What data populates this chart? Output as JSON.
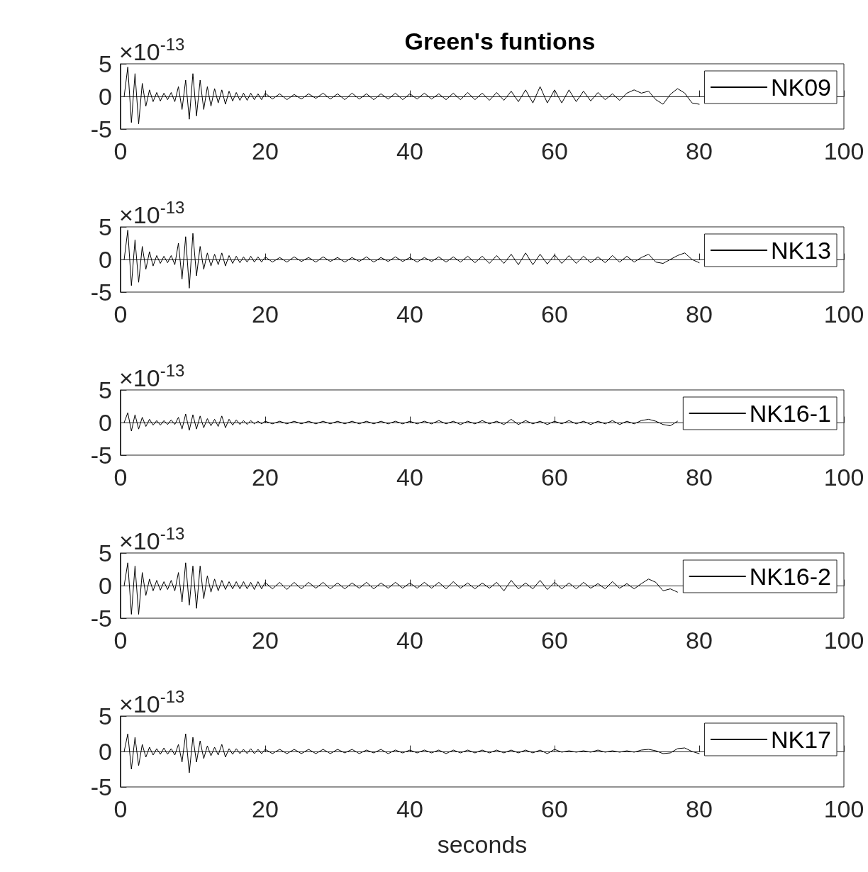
{
  "chart_data": [
    {
      "type": "line",
      "title": "Green's funtions",
      "annotations": [
        "×10$^{-13}$"
      ],
      "xlim": [
        0,
        100
      ],
      "xticks": [
        0,
        20,
        40,
        60,
        80,
        100
      ],
      "ylim": [
        -5,
        5
      ],
      "yticks": [
        -5,
        0,
        5
      ],
      "legend": "top right",
      "x": [
        0.5,
        1,
        1.5,
        2,
        2.5,
        3,
        3.5,
        4,
        4.5,
        5,
        5.5,
        6,
        6.5,
        7,
        7.5,
        8,
        8.5,
        9,
        9.5,
        10,
        10.5,
        11,
        11.5,
        12,
        12.5,
        13,
        13.5,
        14,
        14.5,
        15,
        15.5,
        16,
        16.5,
        17,
        17.5,
        18,
        18.5,
        19,
        19.5,
        20,
        21,
        22,
        23,
        24,
        25,
        26,
        27,
        28,
        29,
        30,
        31,
        32,
        33,
        34,
        35,
        36,
        37,
        38,
        39,
        40,
        41,
        42,
        43,
        44,
        45,
        46,
        47,
        48,
        49,
        50,
        51,
        52,
        53,
        54,
        55,
        56,
        57,
        58,
        59,
        60,
        61,
        62,
        63,
        64,
        65,
        66,
        67,
        68,
        69,
        70,
        71,
        72,
        73,
        74,
        75,
        76,
        77,
        78,
        79,
        80
      ],
      "series": [
        {
          "name": "NK09",
          "color": "#000000",
          "values": [
            0,
            4.5,
            -4,
            3.5,
            -4.2,
            2,
            -1.5,
            1,
            -0.8,
            0.6,
            -0.7,
            0.5,
            -0.5,
            0.6,
            -0.8,
            1.5,
            -2,
            2.5,
            -3.5,
            3.5,
            -3,
            2.5,
            -2,
            1.5,
            -1.5,
            1.2,
            -1,
            1,
            -1.2,
            0.8,
            -0.7,
            0.6,
            -0.6,
            0.5,
            -0.6,
            0.5,
            -0.5,
            0.4,
            -0.5,
            0.5,
            -0.4,
            0.4,
            -0.5,
            0.3,
            -0.4,
            0.4,
            -0.3,
            0.5,
            -0.4,
            0.4,
            -0.5,
            0.5,
            -0.4,
            0.4,
            -0.5,
            0.4,
            -0.4,
            0.5,
            -0.5,
            0.4,
            -0.4,
            0.5,
            -0.4,
            0.4,
            -0.5,
            0.5,
            -0.5,
            0.6,
            -0.5,
            0.5,
            -0.6,
            0.6,
            -0.6,
            0.8,
            -0.8,
            1,
            -1,
            1.5,
            -1,
            1,
            -1,
            1,
            -0.8,
            0.8,
            -0.7,
            0.6,
            -0.5,
            0.4,
            -0.6,
            0.5,
            1,
            0.5,
            0.8,
            -0.5,
            -1.2,
            0.3,
            1.2,
            0.5,
            -1,
            -1.2
          ]
        }
      ]
    },
    {
      "type": "line",
      "annotations": [
        "×10$^{-13}$"
      ],
      "xlim": [
        0,
        100
      ],
      "xticks": [
        0,
        20,
        40,
        60,
        80,
        100
      ],
      "ylim": [
        -5,
        5
      ],
      "yticks": [
        -5,
        0,
        5
      ],
      "legend": "top right",
      "x": [
        0.5,
        1,
        1.5,
        2,
        2.5,
        3,
        3.5,
        4,
        4.5,
        5,
        5.5,
        6,
        6.5,
        7,
        7.5,
        8,
        8.5,
        9,
        9.5,
        10,
        10.5,
        11,
        11.5,
        12,
        12.5,
        13,
        13.5,
        14,
        14.5,
        15,
        15.5,
        16,
        16.5,
        17,
        17.5,
        18,
        18.5,
        19,
        19.5,
        20,
        21,
        22,
        23,
        24,
        25,
        26,
        27,
        28,
        29,
        30,
        31,
        32,
        33,
        34,
        35,
        36,
        37,
        38,
        39,
        40,
        41,
        42,
        43,
        44,
        45,
        46,
        47,
        48,
        49,
        50,
        51,
        52,
        53,
        54,
        55,
        56,
        57,
        58,
        59,
        60,
        61,
        62,
        63,
        64,
        65,
        66,
        67,
        68,
        69,
        70,
        71,
        72,
        73,
        74,
        75,
        76,
        77,
        78,
        79,
        80
      ],
      "series": [
        {
          "name": "NK13",
          "color": "#000000",
          "values": [
            0,
            4.5,
            -4,
            3,
            -3.5,
            2,
            -1.5,
            1.2,
            -1,
            0.6,
            -0.6,
            0.5,
            -0.5,
            0.6,
            -0.8,
            2.5,
            -3,
            3.5,
            -4.4,
            4,
            -2.5,
            2,
            -1.5,
            1,
            -1,
            0.8,
            -0.8,
            1,
            -1,
            0.6,
            -0.6,
            0.5,
            -0.5,
            0.4,
            -0.4,
            0.5,
            -0.4,
            0.4,
            -0.4,
            0.4,
            -0.4,
            0.3,
            -0.4,
            0.4,
            -0.3,
            0.3,
            -0.4,
            0.4,
            -0.3,
            0.3,
            -0.4,
            0.3,
            -0.3,
            0.4,
            -0.4,
            0.3,
            -0.3,
            0.4,
            -0.3,
            0.3,
            -0.4,
            0.3,
            -0.3,
            0.4,
            -0.4,
            0.4,
            -0.4,
            0.5,
            -0.5,
            0.5,
            -0.6,
            0.6,
            -0.6,
            0.8,
            -0.8,
            1,
            -0.8,
            0.8,
            -0.7,
            0.7,
            -0.6,
            0.6,
            -0.6,
            0.5,
            -0.5,
            0.4,
            -0.5,
            0.6,
            -0.4,
            0.5,
            -0.4,
            0.3,
            0.8,
            -0.4,
            -0.6,
            0,
            0.6,
            1,
            0,
            -0.5
          ]
        }
      ]
    },
    {
      "type": "line",
      "annotations": [
        "×10$^{-13}$"
      ],
      "xlim": [
        0,
        100
      ],
      "xticks": [
        0,
        20,
        40,
        60,
        80,
        100
      ],
      "ylim": [
        -5,
        5
      ],
      "yticks": [
        -5,
        0,
        5
      ],
      "legend": "top right",
      "x": [
        0.5,
        1,
        1.5,
        2,
        2.5,
        3,
        3.5,
        4,
        4.5,
        5,
        5.5,
        6,
        6.5,
        7,
        7.5,
        8,
        8.5,
        9,
        9.5,
        10,
        10.5,
        11,
        11.5,
        12,
        12.5,
        13,
        13.5,
        14,
        14.5,
        15,
        15.5,
        16,
        16.5,
        17,
        17.5,
        18,
        18.5,
        19,
        19.5,
        20,
        21,
        22,
        23,
        24,
        25,
        26,
        27,
        28,
        29,
        30,
        31,
        32,
        33,
        34,
        35,
        36,
        37,
        38,
        39,
        40,
        41,
        42,
        43,
        44,
        45,
        46,
        47,
        48,
        49,
        50,
        51,
        52,
        53,
        54,
        55,
        56,
        57,
        58,
        59,
        60,
        61,
        62,
        63,
        64,
        65,
        66,
        67,
        68,
        69,
        70,
        71,
        72,
        73,
        74,
        75,
        76,
        77
      ],
      "series": [
        {
          "name": "NK16-1",
          "color": "#000000",
          "values": [
            0,
            1.5,
            -1.3,
            1.2,
            -1,
            0.8,
            -0.6,
            0.5,
            -0.4,
            0.3,
            -0.4,
            0.3,
            -0.3,
            0.4,
            -0.3,
            0.8,
            -1,
            1.3,
            -1.2,
            1.2,
            -1,
            1,
            -0.8,
            0.6,
            -0.5,
            0.5,
            -0.6,
            1,
            -0.8,
            0.5,
            -0.4,
            0.4,
            -0.3,
            0.3,
            -0.3,
            0.3,
            -0.2,
            0.2,
            -0.2,
            0.2,
            -0.2,
            0.2,
            -0.2,
            0.2,
            -0.2,
            0.2,
            -0.2,
            0.2,
            -0.2,
            0.2,
            -0.2,
            0.2,
            -0.2,
            0.2,
            -0.2,
            0.2,
            -0.2,
            0.2,
            -0.2,
            0.2,
            -0.2,
            0.2,
            -0.2,
            0.3,
            -0.2,
            0.2,
            -0.3,
            0.2,
            -0.2,
            0.3,
            -0.2,
            0.2,
            -0.3,
            0.5,
            -0.3,
            0.3,
            -0.2,
            0.2,
            -0.3,
            0.2,
            -0.2,
            0.3,
            -0.2,
            0.2,
            -0.3,
            0.2,
            -0.2,
            0.3,
            -0.3,
            0.2,
            -0.2,
            0.3,
            0.5,
            0.2,
            -0.3,
            -0.5,
            0.2
          ]
        }
      ]
    },
    {
      "type": "line",
      "annotations": [
        "×10$^{-13}$"
      ],
      "xlim": [
        0,
        100
      ],
      "xticks": [
        0,
        20,
        40,
        60,
        80,
        100
      ],
      "ylim": [
        -5,
        5
      ],
      "yticks": [
        -5,
        0,
        5
      ],
      "legend": "top right",
      "x": [
        0.5,
        1,
        1.5,
        2,
        2.5,
        3,
        3.5,
        4,
        4.5,
        5,
        5.5,
        6,
        6.5,
        7,
        7.5,
        8,
        8.5,
        9,
        9.5,
        10,
        10.5,
        11,
        11.5,
        12,
        12.5,
        13,
        13.5,
        14,
        14.5,
        15,
        15.5,
        16,
        16.5,
        17,
        17.5,
        18,
        18.5,
        19,
        19.5,
        20,
        21,
        22,
        23,
        24,
        25,
        26,
        27,
        28,
        29,
        30,
        31,
        32,
        33,
        34,
        35,
        36,
        37,
        38,
        39,
        40,
        41,
        42,
        43,
        44,
        45,
        46,
        47,
        48,
        49,
        50,
        51,
        52,
        53,
        54,
        55,
        56,
        57,
        58,
        59,
        60,
        61,
        62,
        63,
        64,
        65,
        66,
        67,
        68,
        69,
        70,
        71,
        72,
        73,
        74,
        75,
        76,
        77
      ],
      "series": [
        {
          "name": "NK16-2",
          "color": "#000000",
          "values": [
            0,
            3.5,
            -4.4,
            3,
            -4.4,
            2,
            -1.5,
            1,
            -0.8,
            0.8,
            -0.7,
            0.6,
            -0.6,
            0.8,
            -0.8,
            2,
            -2.5,
            3.5,
            -3,
            3,
            -3.5,
            3,
            -2,
            1.5,
            -1,
            1,
            -0.8,
            0.8,
            -0.6,
            0.6,
            -0.5,
            0.6,
            -0.5,
            0.6,
            -0.5,
            0.5,
            -0.6,
            0.6,
            -0.5,
            0.5,
            -0.5,
            0.5,
            -0.6,
            0.5,
            -0.5,
            0.5,
            -0.4,
            0.5,
            -0.5,
            0.4,
            -0.5,
            0.4,
            -0.4,
            0.5,
            -0.5,
            0.4,
            -0.4,
            0.5,
            -0.4,
            0.4,
            -0.4,
            0.5,
            -0.4,
            0.5,
            -0.5,
            0.6,
            -0.4,
            0.4,
            -0.5,
            0.4,
            -0.4,
            0.5,
            -0.8,
            0.8,
            -0.5,
            0.4,
            -0.5,
            0.8,
            -0.6,
            0.5,
            -0.5,
            0.4,
            -0.5,
            0.5,
            -0.4,
            0.3,
            -0.5,
            0.6,
            -0.4,
            0.3,
            -0.5,
            0.3,
            1,
            0.5,
            -0.8,
            -0.5,
            -1
          ]
        }
      ]
    },
    {
      "type": "line",
      "xlabel": "seconds",
      "annotations": [
        "×10$^{-13}$"
      ],
      "xlim": [
        0,
        100
      ],
      "xticks": [
        0,
        20,
        40,
        60,
        80,
        100
      ],
      "ylim": [
        -5,
        5
      ],
      "yticks": [
        -5,
        0,
        5
      ],
      "legend": "top right",
      "x": [
        0.5,
        1,
        1.5,
        2,
        2.5,
        3,
        3.5,
        4,
        4.5,
        5,
        5.5,
        6,
        6.5,
        7,
        7.5,
        8,
        8.5,
        9,
        9.5,
        10,
        10.5,
        11,
        11.5,
        12,
        12.5,
        13,
        13.5,
        14,
        14.5,
        15,
        15.5,
        16,
        16.5,
        17,
        17.5,
        18,
        18.5,
        19,
        19.5,
        20,
        21,
        22,
        23,
        24,
        25,
        26,
        27,
        28,
        29,
        30,
        31,
        32,
        33,
        34,
        35,
        36,
        37,
        38,
        39,
        40,
        41,
        42,
        43,
        44,
        45,
        46,
        47,
        48,
        49,
        50,
        51,
        52,
        53,
        54,
        55,
        56,
        57,
        58,
        59,
        60,
        61,
        62,
        63,
        64,
        65,
        66,
        67,
        68,
        69,
        70,
        71,
        72,
        73,
        74,
        75,
        76,
        77,
        78,
        79,
        80
      ],
      "series": [
        {
          "name": "NK17",
          "color": "#000000",
          "values": [
            0,
            2.5,
            -2.5,
            2,
            -2,
            1,
            -0.8,
            0.6,
            -0.5,
            0.4,
            -0.4,
            0.5,
            -0.4,
            0.4,
            -0.5,
            1,
            -1.5,
            2.5,
            -3,
            2,
            -1.5,
            1.5,
            -1,
            0.8,
            -0.6,
            0.6,
            -0.5,
            1,
            -0.8,
            0.4,
            -0.4,
            0.4,
            -0.3,
            0.3,
            -0.3,
            0.4,
            -0.3,
            0.3,
            -0.3,
            0.3,
            -0.3,
            0.3,
            -0.3,
            0.3,
            -0.3,
            0.3,
            -0.3,
            0.3,
            -0.3,
            0.3,
            -0.2,
            0.3,
            -0.3,
            0.2,
            -0.2,
            0.3,
            -0.3,
            0.2,
            -0.2,
            0.2,
            -0.2,
            0.2,
            -0.2,
            0.2,
            -0.3,
            0.2,
            -0.2,
            0.2,
            -0.2,
            0.2,
            -0.2,
            0.2,
            -0.2,
            0.2,
            -0.2,
            0.2,
            -0.2,
            0.2,
            -0.3,
            0.3,
            -0.1,
            0.1,
            -0.1,
            0.1,
            -0.1,
            0.2,
            -0.1,
            0.1,
            -0.1,
            0.1,
            -0.1,
            0.2,
            0.3,
            0.1,
            -0.3,
            -0.2,
            0.4,
            0.5,
            0,
            -0.3
          ]
        }
      ]
    }
  ]
}
